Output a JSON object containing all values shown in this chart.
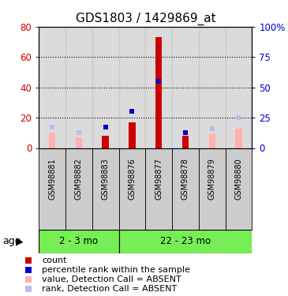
{
  "title": "GDS1803 / 1429869_at",
  "samples": [
    "GSM98881",
    "GSM98882",
    "GSM98883",
    "GSM98876",
    "GSM98877",
    "GSM98878",
    "GSM98879",
    "GSM98880"
  ],
  "group1_count": 3,
  "group1_label": "2 - 3 mo",
  "group2_label": "22 - 23 mo",
  "red_bars": [
    0,
    0,
    8,
    17,
    73,
    8,
    0,
    0
  ],
  "blue_squares": [
    null,
    null,
    17,
    30,
    55,
    13,
    null,
    null
  ],
  "pink_bars": [
    10,
    7,
    0,
    0,
    0,
    0,
    9,
    13
  ],
  "light_blue_sq": [
    17,
    13,
    null,
    null,
    null,
    null,
    16,
    25
  ],
  "ylim_left": [
    0,
    80
  ],
  "ylim_right": [
    0,
    100
  ],
  "left_ticks": [
    0,
    20,
    40,
    60,
    80
  ],
  "right_ticks": [
    0,
    25,
    50,
    75,
    100
  ],
  "left_tick_labels": [
    "0",
    "20",
    "40",
    "60",
    "80"
  ],
  "right_tick_labels": [
    "0",
    "25",
    "50",
    "75",
    "100%"
  ],
  "red_color": "#cc0000",
  "blue_color": "#0000cc",
  "pink_color": "#ffb0b0",
  "light_blue_color": "#bbbbee",
  "green_color": "#77ee55",
  "gray_color": "#cccccc",
  "legend": [
    {
      "color": "#cc0000",
      "label": "count"
    },
    {
      "color": "#0000cc",
      "label": "percentile rank within the sample"
    },
    {
      "color": "#ffb0b0",
      "label": "value, Detection Call = ABSENT"
    },
    {
      "color": "#bbbbee",
      "label": "rank, Detection Call = ABSENT"
    }
  ]
}
